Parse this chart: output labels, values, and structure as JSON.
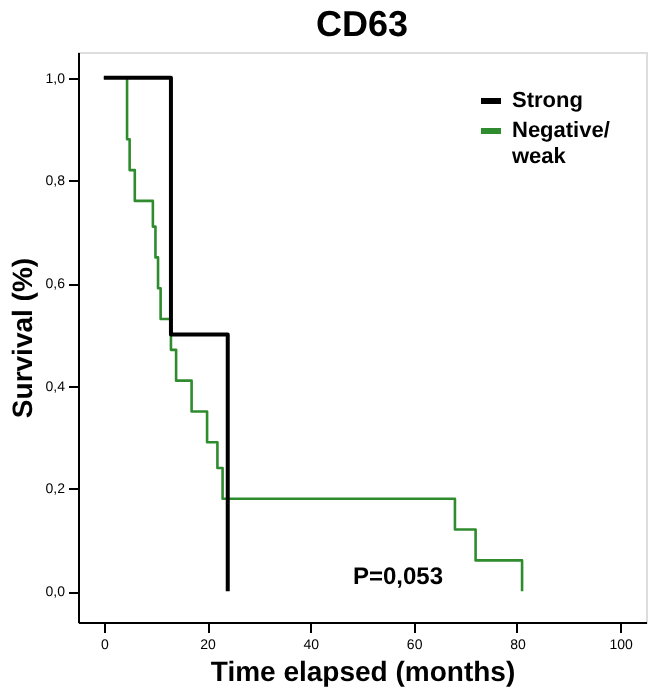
{
  "chart_data": {
    "type": "step",
    "title": "CD63",
    "xlabel": "Time elapsed (months)",
    "ylabel": "Survival (%)",
    "series": [
      {
        "name": "Strong",
        "color": "#000000",
        "x": [
          0,
          13,
          24
        ],
        "values": [
          1,
          0.5,
          0
        ]
      },
      {
        "name": "Negative/\nweak",
        "color": "#2e8b2e",
        "x": [
          0,
          4.5,
          5,
          6,
          9.5,
          10,
          10.5,
          11,
          13,
          14,
          17,
          20,
          22,
          23,
          68,
          72,
          81
        ],
        "values": [
          1,
          0.88,
          0.82,
          0.76,
          0.71,
          0.65,
          0.59,
          0.53,
          0.47,
          0.41,
          0.35,
          0.29,
          0.24,
          0.18,
          0.12,
          0.06,
          0
        ]
      }
    ],
    "xlim": [
      -5,
      105
    ],
    "xticks": [
      0,
      20,
      40,
      60,
      80,
      100
    ],
    "ylim": [
      -0.06,
      1.05
    ],
    "yticks": [
      {
        "value": 0,
        "label": "0,0"
      },
      {
        "value": 0.2,
        "label": "0,2"
      },
      {
        "value": 0.4,
        "label": "0,4"
      },
      {
        "value": 0.6,
        "label": "0,6"
      },
      {
        "value": 0.8,
        "label": "0,8"
      },
      {
        "value": 1,
        "label": "1,0"
      }
    ],
    "annotations": [
      "P=0,053"
    ],
    "legend": "top right",
    "grid": false,
    "marker": "none",
    "line_style": "solid"
  }
}
